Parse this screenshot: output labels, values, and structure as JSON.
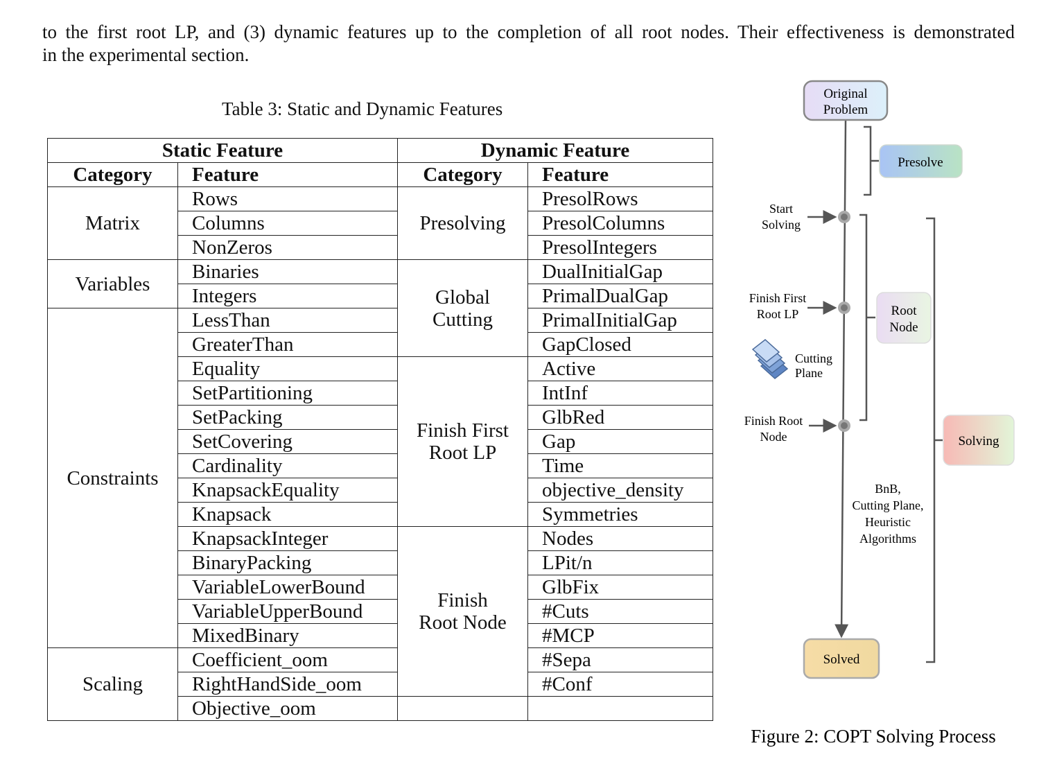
{
  "paragraph_lines": [
    "to the first root LP, and (3) dynamic features up to the completion of all root nodes. Their effectiveness is demonstrated",
    "in the experimental section."
  ],
  "table": {
    "caption": "Table 3: Static and Dynamic Features",
    "header": [
      "Static Feature",
      "Dynamic Feature"
    ],
    "subheader": [
      "Category",
      "Feature",
      "Category",
      "Feature"
    ],
    "static_groups": [
      {
        "category_lines": [
          "Matrix"
        ],
        "features": [
          "Rows",
          "Columns",
          "NonZeros"
        ]
      },
      {
        "category_lines": [
          "Variables"
        ],
        "features": [
          "Binaries",
          "Integers"
        ]
      },
      {
        "category_lines": [
          "Constraints"
        ],
        "features": [
          "LessThan",
          "GreaterThan",
          "Equality",
          "SetPartitioning",
          "SetPacking",
          "SetCovering",
          "Cardinality",
          "KnapsackEquality",
          "Knapsack",
          "KnapsackInteger",
          "BinaryPacking",
          "VariableLowerBound",
          "VariableUpperBound",
          "MixedBinary"
        ]
      },
      {
        "category_lines": [
          "Scaling"
        ],
        "features": [
          "Coefficient_oom",
          "RightHandSide_oom",
          "Objective_oom"
        ]
      }
    ],
    "dynamic_groups": [
      {
        "category_lines": [
          "Presolving"
        ],
        "features": [
          "PresolRows",
          "PresolColumns",
          "PresolIntegers"
        ]
      },
      {
        "category_lines": [
          "Global",
          "Cutting"
        ],
        "features": [
          "DualInitialGap",
          "PrimalDualGap",
          "PrimalInitialGap",
          "GapClosed"
        ]
      },
      {
        "category_lines": [
          "Finish First",
          "Root LP"
        ],
        "features": [
          "Active",
          "IntInf",
          "GlbRed",
          "Gap",
          "Time",
          "objective_density",
          "Symmetries"
        ]
      },
      {
        "category_lines": [
          "Finish",
          "Root Node"
        ],
        "features": [
          "Nodes",
          "LPit/n",
          "GlbFix",
          "#Cuts",
          "#MCP",
          "#Sepa",
          "#Conf"
        ]
      }
    ]
  },
  "figure": {
    "caption": "Figure 2: COPT Solving Process",
    "nodes": [
      {
        "lines": [
          "Original",
          "Problem"
        ]
      },
      {
        "lines": [
          "Presolve"
        ]
      },
      {
        "lines": [
          "Root",
          "Node"
        ]
      },
      {
        "lines": [
          "Solving"
        ]
      },
      {
        "lines": [
          "Solved"
        ]
      }
    ],
    "labels": [
      {
        "lines": [
          "Start",
          "Solving"
        ]
      },
      {
        "lines": [
          "Finish First",
          "Root LP"
        ]
      },
      {
        "lines": [
          "Cutting",
          "Plane"
        ]
      },
      {
        "lines": [
          "Finish Root",
          "Node"
        ]
      },
      {
        "lines": [
          "BnB,",
          "Cutting Plane,",
          "Heuristic",
          "Algorithms"
        ]
      }
    ]
  }
}
